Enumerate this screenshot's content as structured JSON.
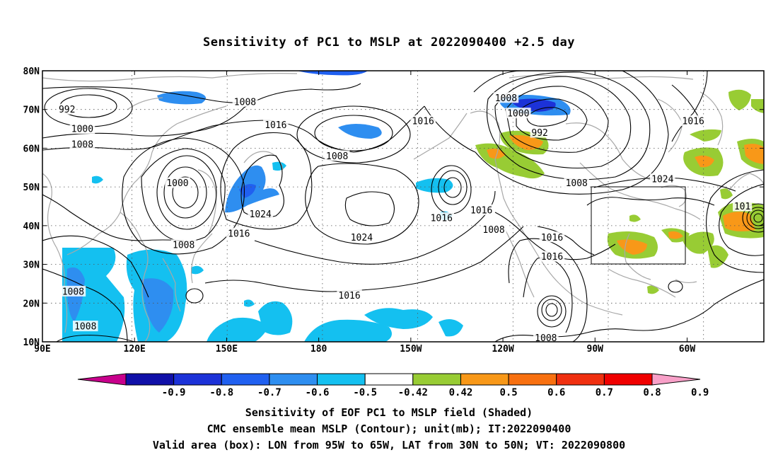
{
  "title": "Sensitivity of PC1 to MSLP at 2022090400 +2.5 day",
  "lat_labels": [
    "80N",
    "70N",
    "60N",
    "50N",
    "40N",
    "30N",
    "20N",
    "10N"
  ],
  "lon_labels": [
    "90E",
    "120E",
    "150E",
    "180",
    "150W",
    "120W",
    "90W",
    "60W"
  ],
  "lon_values": [
    90,
    120,
    150,
    180,
    210,
    240,
    270,
    300
  ],
  "lat_values": [
    80,
    70,
    60,
    50,
    40,
    30,
    20,
    10
  ],
  "colorbar": {
    "labels": [
      "-0.9",
      "-0.8",
      "-0.7",
      "-0.6",
      "-0.5",
      "-0.42",
      "0.42",
      "0.5",
      "0.6",
      "0.7",
      "0.8",
      "0.9"
    ],
    "colors": [
      "#c8008c",
      "#1010a8",
      "#1c32d8",
      "#2060f0",
      "#2e8ef0",
      "#14c0f0",
      "#ffffff",
      "#98cc34",
      "#f89818",
      "#f87010",
      "#f03010",
      "#f00000",
      "#f8a0c8"
    ]
  },
  "contour_labels": [
    {
      "text": "992",
      "lon": 98,
      "lat": 70
    },
    {
      "text": "1000",
      "lon": 103,
      "lat": 65
    },
    {
      "text": "1008",
      "lon": 103,
      "lat": 61
    },
    {
      "text": "1008",
      "lon": 156,
      "lat": 72
    },
    {
      "text": "1016",
      "lon": 166,
      "lat": 66
    },
    {
      "text": "1000",
      "lon": 134,
      "lat": 51
    },
    {
      "text": "1024",
      "lon": 161,
      "lat": 43
    },
    {
      "text": "1016",
      "lon": 154,
      "lat": 38
    },
    {
      "text": "1008",
      "lon": 136,
      "lat": 35
    },
    {
      "text": "1008",
      "lon": 100,
      "lat": 23
    },
    {
      "text": "1008",
      "lon": 104,
      "lat": 14
    },
    {
      "text": "1008",
      "lon": 186,
      "lat": 58
    },
    {
      "text": "1024",
      "lon": 194,
      "lat": 37
    },
    {
      "text": "1016",
      "lon": 190,
      "lat": 22
    },
    {
      "text": "1016",
      "lon": 220,
      "lat": 42
    },
    {
      "text": "1016",
      "lon": 214,
      "lat": 67
    },
    {
      "text": "1008",
      "lon": 241,
      "lat": 73
    },
    {
      "text": "1000",
      "lon": 245,
      "lat": 69
    },
    {
      "text": "992",
      "lon": 252,
      "lat": 64
    },
    {
      "text": "1016",
      "lon": 233,
      "lat": 44
    },
    {
      "text": "1008",
      "lon": 237,
      "lat": 39
    },
    {
      "text": "1016",
      "lon": 256,
      "lat": 37
    },
    {
      "text": "1016",
      "lon": 256,
      "lat": 32
    },
    {
      "text": "1008",
      "lon": 254,
      "lat": 11
    },
    {
      "text": "1008",
      "lon": 264,
      "lat": 51
    },
    {
      "text": "1016",
      "lon": 302,
      "lat": 67
    },
    {
      "text": "1024",
      "lon": 292,
      "lat": 52
    },
    {
      "text": "101",
      "lon": 318,
      "lat": 45
    }
  ],
  "valid_box": {
    "lon_min": 265,
    "lon_max": 295,
    "lat_min": 30,
    "lat_max": 50
  },
  "captions": [
    "Sensitivity of EOF PC1 to MSLP field (Shaded)",
    "CMC ensemble mean MSLP (Contour); unit(mb); IT:2022090400",
    "Valid area (box): LON from 95W to 65W, LAT from 30N to 50N; VT: 2022090800"
  ]
}
